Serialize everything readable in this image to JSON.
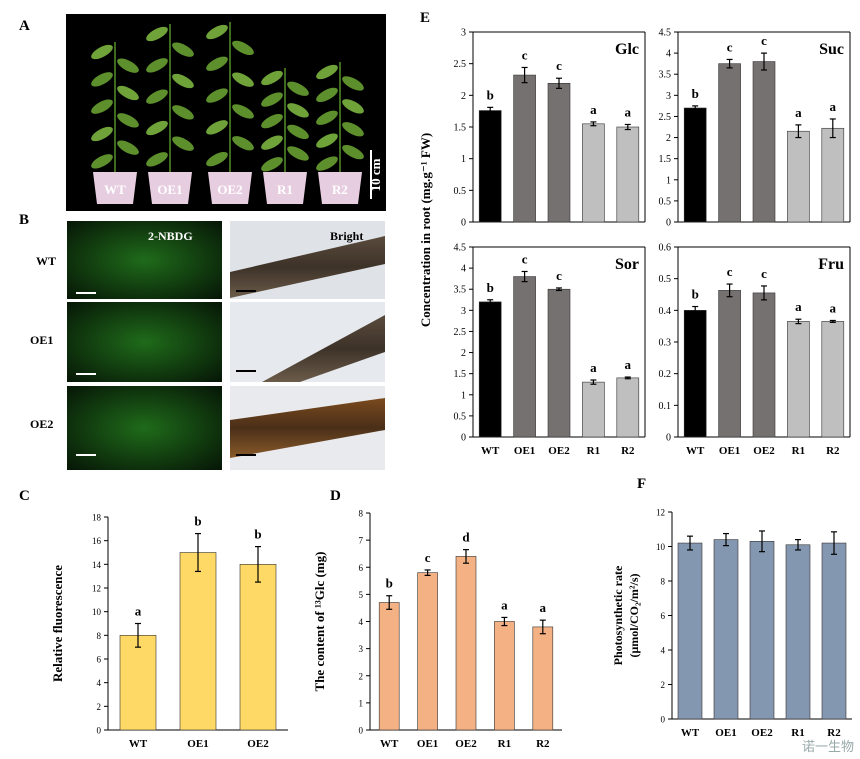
{
  "panel_letters": [
    "A",
    "B",
    "C",
    "D",
    "E",
    "F"
  ],
  "panel_a": {
    "plant_labels": [
      "WT",
      "OE1",
      "OE2",
      "R1",
      "R2"
    ],
    "scale_label": "10 cm"
  },
  "panel_b": {
    "row_labels": [
      "WT",
      "OE1",
      "OE2"
    ],
    "col_headers": [
      "2-NBDG",
      "Bright"
    ]
  },
  "colors": {
    "black": "#000000",
    "dark_gray": "#767171",
    "light_gray": "#bfbfbf",
    "yellow": "#ffd966",
    "orange": "#f4b183",
    "slate": "#8497b0"
  },
  "chart_data": [
    {
      "id": "C",
      "type": "bar",
      "categories": [
        "WT",
        "OE1",
        "OE2"
      ],
      "values": [
        8,
        15,
        14
      ],
      "errors": [
        1.0,
        1.6,
        1.5
      ],
      "sig_letters": [
        "a",
        "b",
        "b"
      ],
      "ylabel": "Relative fluorescence",
      "ylim": [
        0,
        18
      ],
      "yticks": [
        0,
        2,
        4,
        6,
        8,
        10,
        12,
        14,
        16,
        18
      ],
      "bar_colors": [
        "#ffd966",
        "#ffd966",
        "#ffd966"
      ]
    },
    {
      "id": "D",
      "type": "bar",
      "categories": [
        "WT",
        "OE1",
        "OE2",
        "R1",
        "R2"
      ],
      "values": [
        4.7,
        5.8,
        6.4,
        4.0,
        3.8
      ],
      "errors": [
        0.25,
        0.1,
        0.25,
        0.15,
        0.25
      ],
      "sig_letters": [
        "b",
        "c",
        "d",
        "a",
        "a"
      ],
      "ylabel": "The content of ¹³Glc (mg)",
      "ylim": [
        0,
        8
      ],
      "yticks": [
        0,
        1,
        2,
        3,
        4,
        5,
        6,
        7,
        8
      ],
      "bar_colors": [
        "#f4b183",
        "#f4b183",
        "#f4b183",
        "#f4b183",
        "#f4b183"
      ]
    },
    {
      "id": "E-Glc",
      "type": "bar",
      "title": "Glc",
      "categories": [
        "WT",
        "OE1",
        "OE2",
        "R1",
        "R2"
      ],
      "values": [
        1.76,
        2.32,
        2.19,
        1.55,
        1.5
      ],
      "errors": [
        0.05,
        0.12,
        0.08,
        0.03,
        0.04
      ],
      "sig_letters": [
        "b",
        "c",
        "c",
        "a",
        "a"
      ],
      "ylim": [
        0,
        3
      ],
      "yticks": [
        0,
        0.5,
        1,
        1.5,
        2,
        2.5,
        3
      ],
      "bar_colors": [
        "#000000",
        "#767171",
        "#767171",
        "#bfbfbf",
        "#bfbfbf"
      ]
    },
    {
      "id": "E-Suc",
      "type": "bar",
      "title": "Suc",
      "categories": [
        "WT",
        "OE1",
        "OE2",
        "R1",
        "R2"
      ],
      "values": [
        2.7,
        3.75,
        3.8,
        2.15,
        2.22
      ],
      "errors": [
        0.05,
        0.1,
        0.2,
        0.15,
        0.22
      ],
      "sig_letters": [
        "b",
        "c",
        "c",
        "a",
        "a"
      ],
      "ylim": [
        0,
        4.5
      ],
      "yticks": [
        0,
        0.5,
        1,
        1.5,
        2,
        2.5,
        3,
        3.5,
        4,
        4.5
      ],
      "bar_colors": [
        "#000000",
        "#767171",
        "#767171",
        "#bfbfbf",
        "#bfbfbf"
      ]
    },
    {
      "id": "E-Sor",
      "type": "bar",
      "title": "Sor",
      "categories": [
        "WT",
        "OE1",
        "OE2",
        "R1",
        "R2"
      ],
      "values": [
        3.2,
        3.8,
        3.5,
        1.3,
        1.4
      ],
      "errors": [
        0.05,
        0.12,
        0.03,
        0.05,
        0.02
      ],
      "sig_letters": [
        "b",
        "c",
        "c",
        "a",
        "a"
      ],
      "ylim": [
        0,
        4.5
      ],
      "yticks": [
        0,
        0.5,
        1,
        1.5,
        2,
        2.5,
        3,
        3.5,
        4,
        4.5
      ],
      "bar_colors": [
        "#000000",
        "#767171",
        "#767171",
        "#bfbfbf",
        "#bfbfbf"
      ]
    },
    {
      "id": "E-Fru",
      "type": "bar",
      "title": "Fru",
      "categories": [
        "WT",
        "OE1",
        "OE2",
        "R1",
        "R2"
      ],
      "values": [
        0.4,
        0.463,
        0.455,
        0.365,
        0.365
      ],
      "errors": [
        0.012,
        0.02,
        0.022,
        0.007,
        0.003
      ],
      "sig_letters": [
        "b",
        "c",
        "c",
        "a",
        "a"
      ],
      "ylim": [
        0,
        0.6
      ],
      "yticks": [
        0,
        0.1,
        0.2,
        0.3,
        0.4,
        0.5,
        0.6
      ],
      "bar_colors": [
        "#000000",
        "#767171",
        "#767171",
        "#bfbfbf",
        "#bfbfbf"
      ]
    },
    {
      "id": "F",
      "type": "bar",
      "categories": [
        "WT",
        "OE1",
        "OE2",
        "R1",
        "R2"
      ],
      "values": [
        10.2,
        10.4,
        10.3,
        10.1,
        10.2
      ],
      "errors": [
        0.4,
        0.35,
        0.6,
        0.3,
        0.65
      ],
      "sig_letters": [],
      "ylabel_lines": [
        "Photosynthetic rate",
        "(μmol/CO₂/m²/s)"
      ],
      "ylim": [
        0,
        12
      ],
      "yticks": [
        0,
        2,
        4,
        6,
        8,
        10,
        12
      ],
      "bar_colors": [
        "#8497b0",
        "#8497b0",
        "#8497b0",
        "#8497b0",
        "#8497b0"
      ]
    }
  ],
  "shared_labels": {
    "e_ylabel": "Concentration in root (mg.g⁻¹ FW)"
  },
  "watermark": "诺一生物"
}
